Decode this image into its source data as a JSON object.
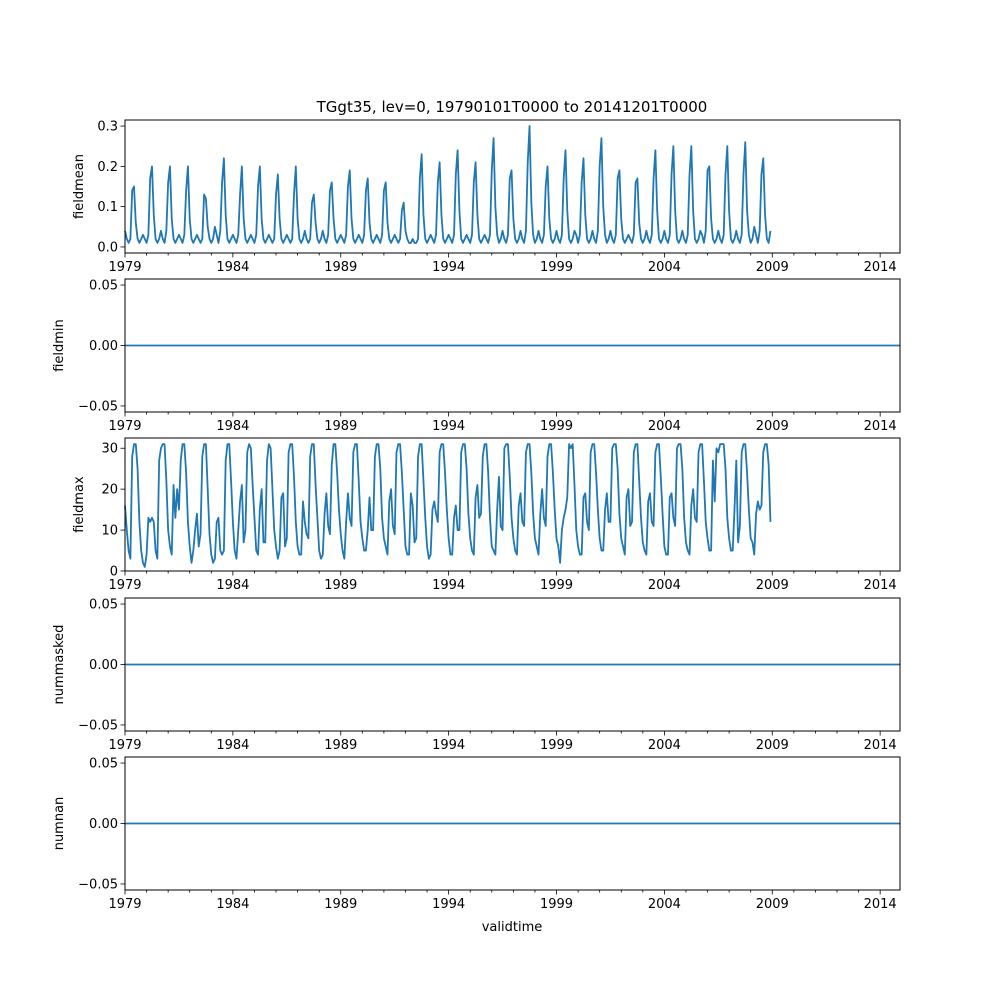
{
  "figure": {
    "title": "TGgt35, lev=0, 19790101T0000 to 20141201T0000",
    "xlabel": "validtime"
  },
  "colors": {
    "line": "#1f77b4",
    "axes": "#000000",
    "background": "#ffffff"
  },
  "chart_data": [
    {
      "type": "line",
      "name": "fieldmean",
      "ylabel": "fieldmean",
      "xlim": [
        1979.0,
        2014.92
      ],
      "ylim": [
        -0.015,
        0.315
      ],
      "x_ticks": [
        1979,
        1984,
        1989,
        1994,
        1999,
        2004,
        2009,
        2014
      ],
      "x_tick_labels": [
        "1979",
        "1984",
        "1989",
        "1994",
        "1999",
        "2004",
        "2009",
        "2014"
      ],
      "y_ticks": [
        0.0,
        0.1,
        0.2,
        0.3
      ],
      "y_tick_labels": [
        "0.0",
        "0.1",
        "0.2",
        "0.3"
      ],
      "x_start": 1979.0,
      "x_step": 0.08333,
      "series": [
        {
          "name": "fieldmean",
          "values": [
            0.04,
            0.02,
            0.01,
            0.02,
            0.14,
            0.15,
            0.06,
            0.02,
            0.01,
            0.02,
            0.03,
            0.02,
            0.01,
            0.03,
            0.17,
            0.2,
            0.08,
            0.02,
            0.01,
            0.02,
            0.04,
            0.02,
            0.01,
            0.04,
            0.16,
            0.2,
            0.07,
            0.02,
            0.01,
            0.02,
            0.03,
            0.02,
            0.01,
            0.03,
            0.14,
            0.2,
            0.07,
            0.02,
            0.01,
            0.02,
            0.03,
            0.02,
            0.01,
            0.02,
            0.13,
            0.12,
            0.05,
            0.02,
            0.01,
            0.02,
            0.05,
            0.03,
            0.01,
            0.04,
            0.16,
            0.22,
            0.08,
            0.02,
            0.01,
            0.02,
            0.03,
            0.02,
            0.01,
            0.03,
            0.13,
            0.2,
            0.07,
            0.02,
            0.01,
            0.02,
            0.03,
            0.02,
            0.01,
            0.03,
            0.15,
            0.2,
            0.07,
            0.02,
            0.01,
            0.02,
            0.03,
            0.02,
            0.01,
            0.02,
            0.13,
            0.18,
            0.07,
            0.02,
            0.01,
            0.02,
            0.03,
            0.02,
            0.01,
            0.02,
            0.13,
            0.2,
            0.07,
            0.02,
            0.01,
            0.02,
            0.04,
            0.02,
            0.01,
            0.02,
            0.11,
            0.13,
            0.06,
            0.02,
            0.01,
            0.02,
            0.04,
            0.02,
            0.01,
            0.03,
            0.14,
            0.16,
            0.07,
            0.02,
            0.01,
            0.02,
            0.03,
            0.02,
            0.01,
            0.03,
            0.15,
            0.19,
            0.07,
            0.02,
            0.01,
            0.02,
            0.03,
            0.02,
            0.01,
            0.03,
            0.14,
            0.17,
            0.06,
            0.02,
            0.01,
            0.02,
            0.03,
            0.02,
            0.01,
            0.03,
            0.14,
            0.16,
            0.06,
            0.02,
            0.01,
            0.02,
            0.03,
            0.02,
            0.01,
            0.02,
            0.09,
            0.11,
            0.04,
            0.02,
            0.01,
            0.01,
            0.02,
            0.01,
            0.01,
            0.02,
            0.17,
            0.23,
            0.08,
            0.02,
            0.01,
            0.02,
            0.03,
            0.02,
            0.01,
            0.03,
            0.16,
            0.21,
            0.08,
            0.02,
            0.01,
            0.02,
            0.03,
            0.02,
            0.01,
            0.03,
            0.18,
            0.24,
            0.09,
            0.02,
            0.01,
            0.02,
            0.03,
            0.02,
            0.01,
            0.03,
            0.16,
            0.21,
            0.08,
            0.02,
            0.01,
            0.02,
            0.03,
            0.02,
            0.01,
            0.03,
            0.19,
            0.27,
            0.1,
            0.03,
            0.01,
            0.02,
            0.04,
            0.02,
            0.01,
            0.03,
            0.17,
            0.19,
            0.07,
            0.02,
            0.01,
            0.02,
            0.04,
            0.02,
            0.01,
            0.04,
            0.21,
            0.3,
            0.11,
            0.03,
            0.01,
            0.02,
            0.04,
            0.02,
            0.01,
            0.03,
            0.15,
            0.2,
            0.07,
            0.02,
            0.01,
            0.02,
            0.04,
            0.02,
            0.01,
            0.03,
            0.17,
            0.24,
            0.09,
            0.02,
            0.01,
            0.02,
            0.04,
            0.03,
            0.01,
            0.03,
            0.16,
            0.22,
            0.08,
            0.02,
            0.01,
            0.02,
            0.04,
            0.02,
            0.01,
            0.04,
            0.2,
            0.27,
            0.1,
            0.03,
            0.01,
            0.02,
            0.04,
            0.02,
            0.01,
            0.03,
            0.17,
            0.19,
            0.07,
            0.02,
            0.01,
            0.02,
            0.03,
            0.02,
            0.01,
            0.03,
            0.16,
            0.17,
            0.06,
            0.02,
            0.01,
            0.02,
            0.04,
            0.02,
            0.01,
            0.03,
            0.17,
            0.24,
            0.09,
            0.02,
            0.01,
            0.02,
            0.04,
            0.02,
            0.01,
            0.03,
            0.18,
            0.25,
            0.09,
            0.02,
            0.01,
            0.02,
            0.04,
            0.02,
            0.01,
            0.03,
            0.18,
            0.25,
            0.09,
            0.02,
            0.01,
            0.02,
            0.04,
            0.03,
            0.01,
            0.04,
            0.19,
            0.2,
            0.07,
            0.02,
            0.01,
            0.02,
            0.04,
            0.02,
            0.01,
            0.03,
            0.18,
            0.25,
            0.09,
            0.02,
            0.01,
            0.02,
            0.04,
            0.02,
            0.01,
            0.03,
            0.18,
            0.26,
            0.09,
            0.03,
            0.01,
            0.02,
            0.05,
            0.03,
            0.01,
            0.04,
            0.18,
            0.22,
            0.08,
            0.02,
            0.01,
            0.04
          ]
        }
      ]
    },
    {
      "type": "line",
      "name": "fieldmin",
      "ylabel": "fieldmin",
      "xlim": [
        1979.0,
        2014.92
      ],
      "ylim": [
        -0.055,
        0.055
      ],
      "x_ticks": [
        1979,
        1984,
        1989,
        1994,
        1999,
        2004,
        2009,
        2014
      ],
      "x_tick_labels": [
        "1979",
        "1984",
        "1989",
        "1994",
        "1999",
        "2004",
        "2009",
        "2014"
      ],
      "y_ticks": [
        -0.05,
        0.0,
        0.05
      ],
      "y_tick_labels": [
        "−0.05",
        "0.00",
        "0.05"
      ],
      "x_start": 1979.0,
      "x_step": 35.92,
      "series": [
        {
          "name": "fieldmin",
          "values": [
            0,
            0
          ]
        }
      ]
    },
    {
      "type": "line",
      "name": "fieldmax",
      "ylabel": "fieldmax",
      "xlim": [
        1979.0,
        2014.92
      ],
      "ylim": [
        0,
        32.5
      ],
      "x_ticks": [
        1979,
        1984,
        1989,
        1994,
        1999,
        2004,
        2009,
        2014
      ],
      "x_tick_labels": [
        "1979",
        "1984",
        "1989",
        "1994",
        "1999",
        "2004",
        "2009",
        "2014"
      ],
      "y_ticks": [
        0,
        10,
        20,
        30
      ],
      "y_tick_labels": [
        "0",
        "10",
        "20",
        "30"
      ],
      "x_start": 1979.0,
      "x_step": 0.08333,
      "series": [
        {
          "name": "fieldmax",
          "values": [
            16,
            10,
            5,
            3,
            28,
            31,
            31,
            25,
            12,
            5,
            2,
            1,
            4,
            13,
            12,
            13,
            12,
            5,
            3,
            27,
            30,
            31,
            31,
            22,
            10,
            6,
            4,
            21,
            13,
            20,
            15,
            27,
            31,
            31,
            24,
            12,
            6,
            2,
            5,
            10,
            14,
            6,
            9,
            28,
            31,
            31,
            20,
            9,
            4,
            2,
            3,
            12,
            13,
            5,
            4,
            5,
            27,
            31,
            31,
            22,
            12,
            5,
            3,
            10,
            17,
            21,
            7,
            10,
            29,
            31,
            30,
            21,
            13,
            5,
            4,
            15,
            20,
            7,
            7,
            27,
            31,
            30,
            20,
            10,
            6,
            3,
            5,
            18,
            19,
            6,
            8,
            29,
            31,
            31,
            23,
            12,
            6,
            4,
            4,
            17,
            12,
            9,
            8,
            28,
            31,
            31,
            21,
            13,
            5,
            3,
            4,
            14,
            19,
            11,
            9,
            26,
            31,
            31,
            24,
            15,
            9,
            5,
            3,
            12,
            19,
            13,
            11,
            29,
            31,
            31,
            22,
            12,
            8,
            5,
            5,
            10,
            18,
            10,
            10,
            28,
            31,
            31,
            25,
            13,
            8,
            6,
            4,
            17,
            20,
            11,
            9,
            29,
            31,
            31,
            24,
            15,
            6,
            4,
            4,
            19,
            16,
            7,
            8,
            28,
            31,
            31,
            22,
            13,
            6,
            3,
            4,
            15,
            17,
            14,
            12,
            29,
            31,
            31,
            24,
            15,
            8,
            4,
            4,
            13,
            16,
            10,
            10,
            29,
            31,
            31,
            25,
            14,
            8,
            5,
            4,
            18,
            21,
            13,
            14,
            28,
            31,
            31,
            24,
            13,
            6,
            5,
            4,
            15,
            23,
            11,
            10,
            30,
            31,
            31,
            23,
            13,
            8,
            5,
            4,
            16,
            19,
            12,
            11,
            29,
            31,
            31,
            24,
            14,
            8,
            6,
            4,
            14,
            20,
            13,
            11,
            28,
            31,
            31,
            24,
            15,
            8,
            6,
            2,
            10,
            13,
            15,
            18,
            31,
            30,
            31,
            21,
            10,
            6,
            4,
            4,
            18,
            19,
            12,
            10,
            29,
            31,
            31,
            24,
            15,
            8,
            5,
            5,
            15,
            19,
            12,
            12,
            30,
            31,
            31,
            25,
            14,
            8,
            6,
            4,
            18,
            20,
            11,
            12,
            29,
            31,
            31,
            22,
            13,
            7,
            5,
            4,
            17,
            19,
            12,
            11,
            29,
            31,
            31,
            23,
            14,
            6,
            4,
            4,
            18,
            19,
            13,
            11,
            30,
            31,
            31,
            25,
            13,
            7,
            5,
            4,
            16,
            20,
            13,
            12,
            29,
            31,
            31,
            22,
            12,
            8,
            5,
            5,
            27,
            17,
            30,
            29,
            31,
            31,
            31,
            25,
            13,
            8,
            5,
            5,
            15,
            27,
            7,
            11,
            29,
            31,
            31,
            24,
            15,
            8,
            7,
            4,
            14,
            17,
            15,
            16,
            29,
            31,
            31,
            26,
            12
          ]
        }
      ]
    },
    {
      "type": "line",
      "name": "nummasked",
      "ylabel": "nummasked",
      "xlim": [
        1979.0,
        2014.92
      ],
      "ylim": [
        -0.055,
        0.055
      ],
      "x_ticks": [
        1979,
        1984,
        1989,
        1994,
        1999,
        2004,
        2009,
        2014
      ],
      "x_tick_labels": [
        "1979",
        "1984",
        "1989",
        "1994",
        "1999",
        "2004",
        "2009",
        "2014"
      ],
      "y_ticks": [
        -0.05,
        0.0,
        0.05
      ],
      "y_tick_labels": [
        "−0.05",
        "0.00",
        "0.05"
      ],
      "x_start": 1979.0,
      "x_step": 35.92,
      "series": [
        {
          "name": "nummasked",
          "values": [
            0,
            0
          ]
        }
      ]
    },
    {
      "type": "line",
      "name": "numnan",
      "ylabel": "numnan",
      "xlim": [
        1979.0,
        2014.92
      ],
      "ylim": [
        -0.055,
        0.055
      ],
      "x_ticks": [
        1979,
        1984,
        1989,
        1994,
        1999,
        2004,
        2009,
        2014
      ],
      "x_tick_labels": [
        "1979",
        "1984",
        "1989",
        "1994",
        "1999",
        "2004",
        "2009",
        "2014"
      ],
      "y_ticks": [
        -0.05,
        0.0,
        0.05
      ],
      "y_tick_labels": [
        "−0.05",
        "0.00",
        "0.05"
      ],
      "x_start": 1979.0,
      "x_step": 35.92,
      "series": [
        {
          "name": "numnan",
          "values": [
            0,
            0
          ]
        }
      ]
    }
  ]
}
